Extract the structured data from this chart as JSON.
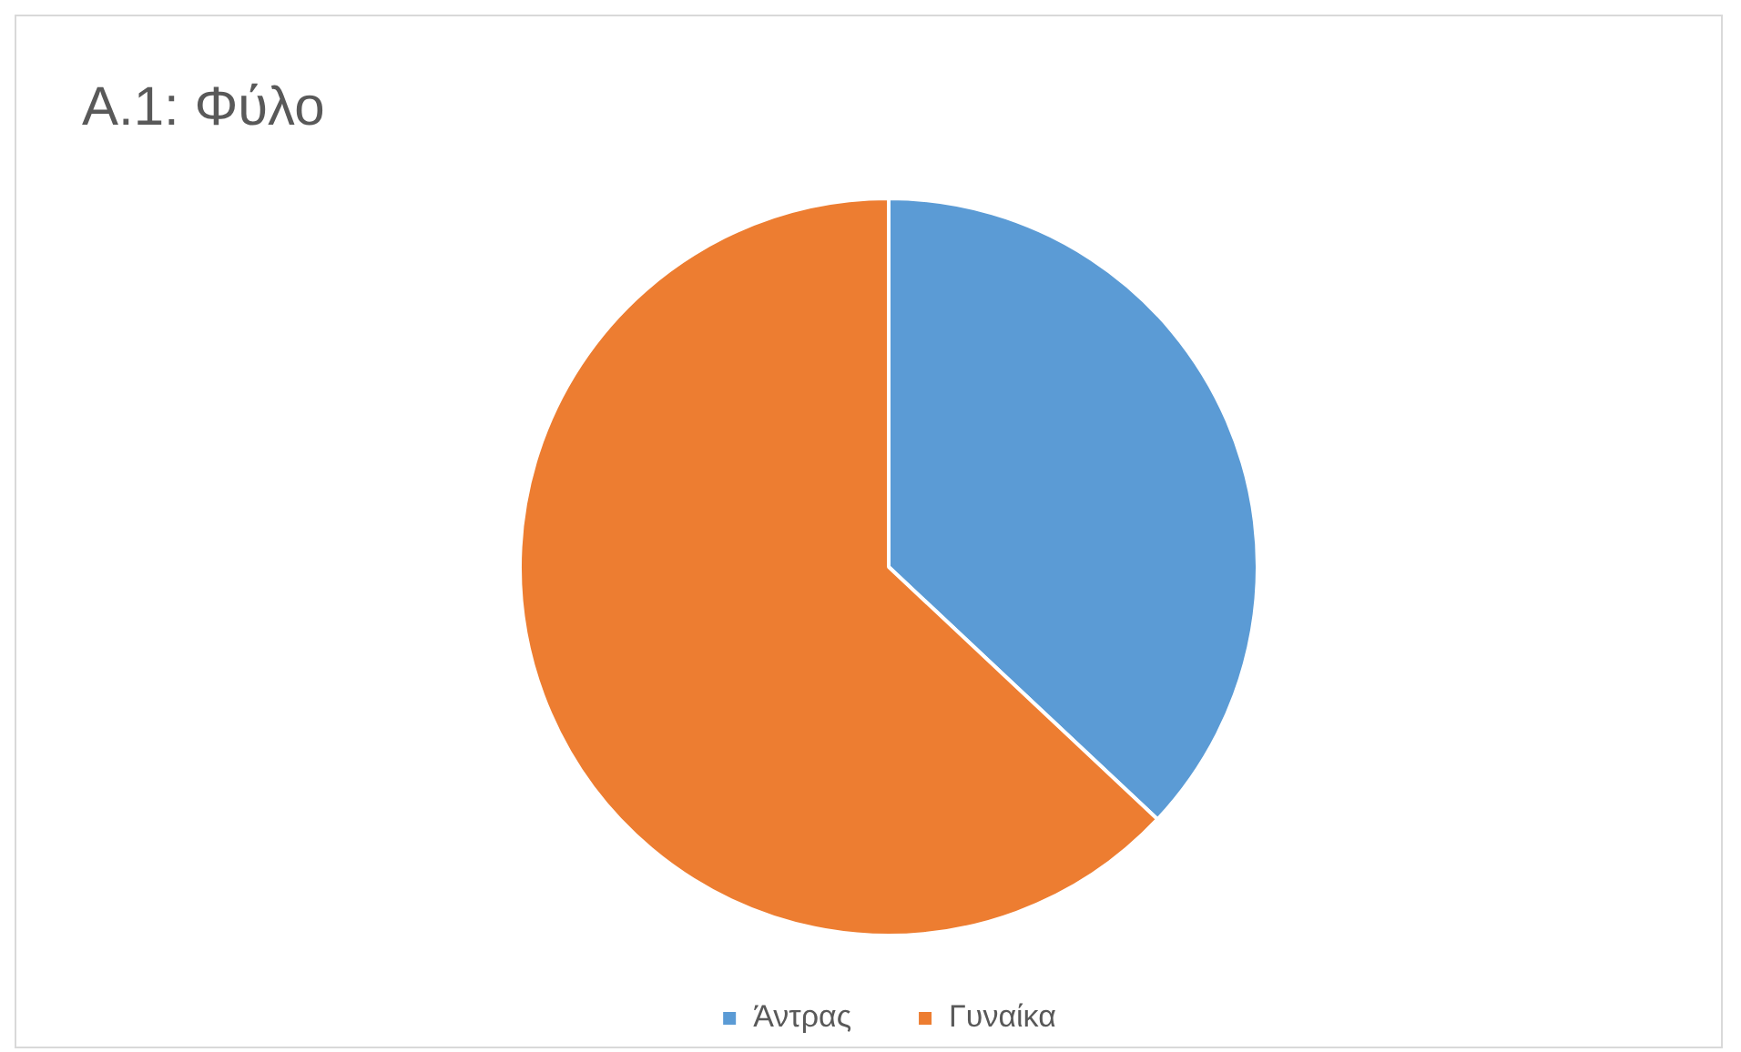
{
  "chart_data": {
    "type": "pie",
    "title": "Α.1: Φύλο",
    "categories": [
      "Άντρας",
      "Γυναίκα"
    ],
    "values": [
      37,
      63
    ],
    "colors": [
      "#5b9bd5",
      "#ed7d31"
    ],
    "legend": "bottom"
  }
}
